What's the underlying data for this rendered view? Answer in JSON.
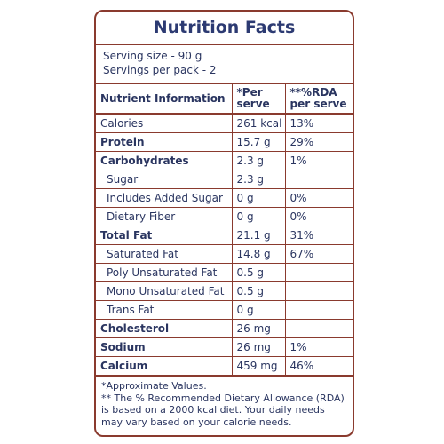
{
  "title": "Nutrition Facts",
  "serving": {
    "size": "Serving size - 90 g",
    "per_pack": "Servings per pack - 2"
  },
  "table": {
    "headers": {
      "nutrient": "Nutrient Information",
      "per_serve": "*Per serve",
      "rda": "**%RDA per serve"
    },
    "rows": [
      {
        "name": "Calories",
        "per_serve": "261 kcal",
        "rda": "13%"
      },
      {
        "name": "Protein",
        "per_serve": "15.7 g",
        "rda": "29%"
      },
      {
        "name": "Carbohydrates",
        "per_serve": "2.3 g",
        "rda": "1%"
      },
      {
        "name": "Sugar",
        "per_serve": "2.3 g",
        "rda": ""
      },
      {
        "name": "Includes Added Sugar",
        "per_serve": "0 g",
        "rda": "0%"
      },
      {
        "name": "Dietary Fiber",
        "per_serve": "0 g",
        "rda": "0%"
      },
      {
        "name": "Total Fat",
        "per_serve": "21.1 g",
        "rda": "31%"
      },
      {
        "name": "Saturated Fat",
        "per_serve": "14.8 g",
        "rda": "67%"
      },
      {
        "name": "Poly Unsaturated Fat",
        "per_serve": "0.5 g",
        "rda": ""
      },
      {
        "name": "Mono Unsaturated Fat",
        "per_serve": "0.5 g",
        "rda": ""
      },
      {
        "name": "Trans Fat",
        "per_serve": "0 g",
        "rda": ""
      },
      {
        "name": "Cholesterol",
        "per_serve": "26 mg",
        "rda": ""
      },
      {
        "name": "Sodium",
        "per_serve": "26 mg",
        "rda": "1%"
      },
      {
        "name": "Calcium",
        "per_serve": "459 mg",
        "rda": "46%"
      }
    ]
  },
  "footnotes": {
    "approx": "*Approximate Values.",
    "rda_note": "** The % Recommended Dietary Allowance (RDA) is based on a 2000 kcal diet. Your daily needs may vary based on your calorie needs."
  },
  "colors": {
    "border": "#8a3a2e",
    "text": "#2a3560",
    "title": "#2c3a72"
  }
}
